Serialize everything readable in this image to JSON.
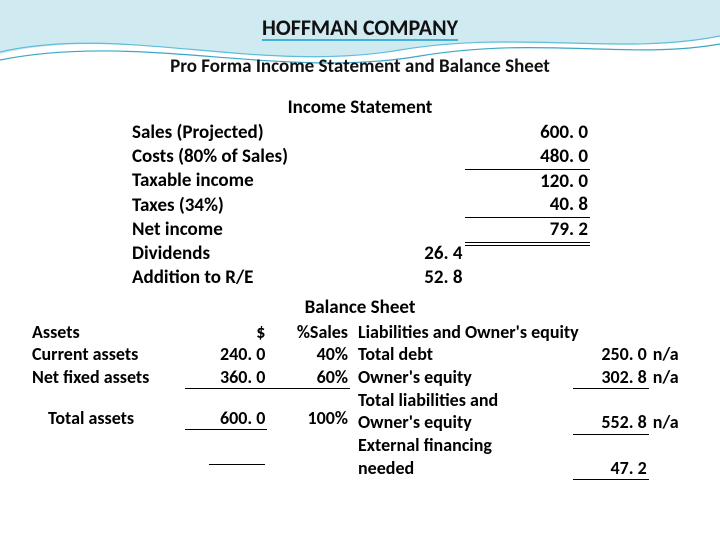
{
  "header": {
    "company": "HOFFMAN COMPANY",
    "subtitle": "Pro Forma Income Statement and Balance Sheet"
  },
  "income_statement": {
    "title": "Income Statement",
    "rows": [
      {
        "label": "Sales (Projected)",
        "col1": "",
        "col2": "600. 0",
        "u1": "",
        "u2": ""
      },
      {
        "label": "Costs (80% of Sales)",
        "col1": "",
        "col2": "480. 0",
        "u1": "",
        "u2": "single"
      },
      {
        "label": "Taxable income",
        "col1": "",
        "col2": "120. 0",
        "u1": "",
        "u2": ""
      },
      {
        "label": "Taxes (34%)",
        "col1": "",
        "col2": "40. 8",
        "u1": "",
        "u2": "single"
      },
      {
        "label": "Net income",
        "col1": "",
        "col2": "79. 2",
        "u1": "",
        "u2": "total"
      },
      {
        "label": "Dividends",
        "col1": "26. 4",
        "col2": "",
        "u1": "",
        "u2": ""
      },
      {
        "label": "Addition to R/E",
        "col1": "52. 8",
        "col2": "",
        "u1": "",
        "u2": ""
      }
    ]
  },
  "balance_sheet": {
    "title": "Balance Sheet",
    "left": {
      "hdr_label": "Assets",
      "hdr_amt": "$",
      "hdr_pct": "%Sales",
      "rows": [
        {
          "label": "Current assets",
          "amt": "240. 0",
          "pct": "40%",
          "u_amt": "",
          "u_pct": ""
        },
        {
          "label": "Net fixed assets",
          "amt": "360. 0",
          "pct": "60%",
          "u_amt": "single",
          "u_pct": "single"
        }
      ],
      "total_label": "Total assets",
      "total_amt": "600. 0",
      "total_pct": "100%"
    },
    "right": {
      "hdr_label": "Liabilities and Owner's equity",
      "rows": [
        {
          "label": "Total debt",
          "amt": "250. 0",
          "na": "n/a",
          "u_amt": ""
        },
        {
          "label": "Owner's equity",
          "amt": "302. 8",
          "na": "n/a",
          "u_amt": "single"
        }
      ],
      "total_label1": "Total liabilities and",
      "total_label2": "Owner's equity",
      "total_amt": "552. 8",
      "total_na": "n/a",
      "efn_label1": "External financing",
      "efn_label2": "needed",
      "efn_amt": "47. 2"
    }
  },
  "style": {
    "wave_color1": "#a8dce8",
    "wave_color2": "#4fb9d6",
    "wave_stroke": "#2e9cbf",
    "underline_accent": "#3fb3d6"
  }
}
